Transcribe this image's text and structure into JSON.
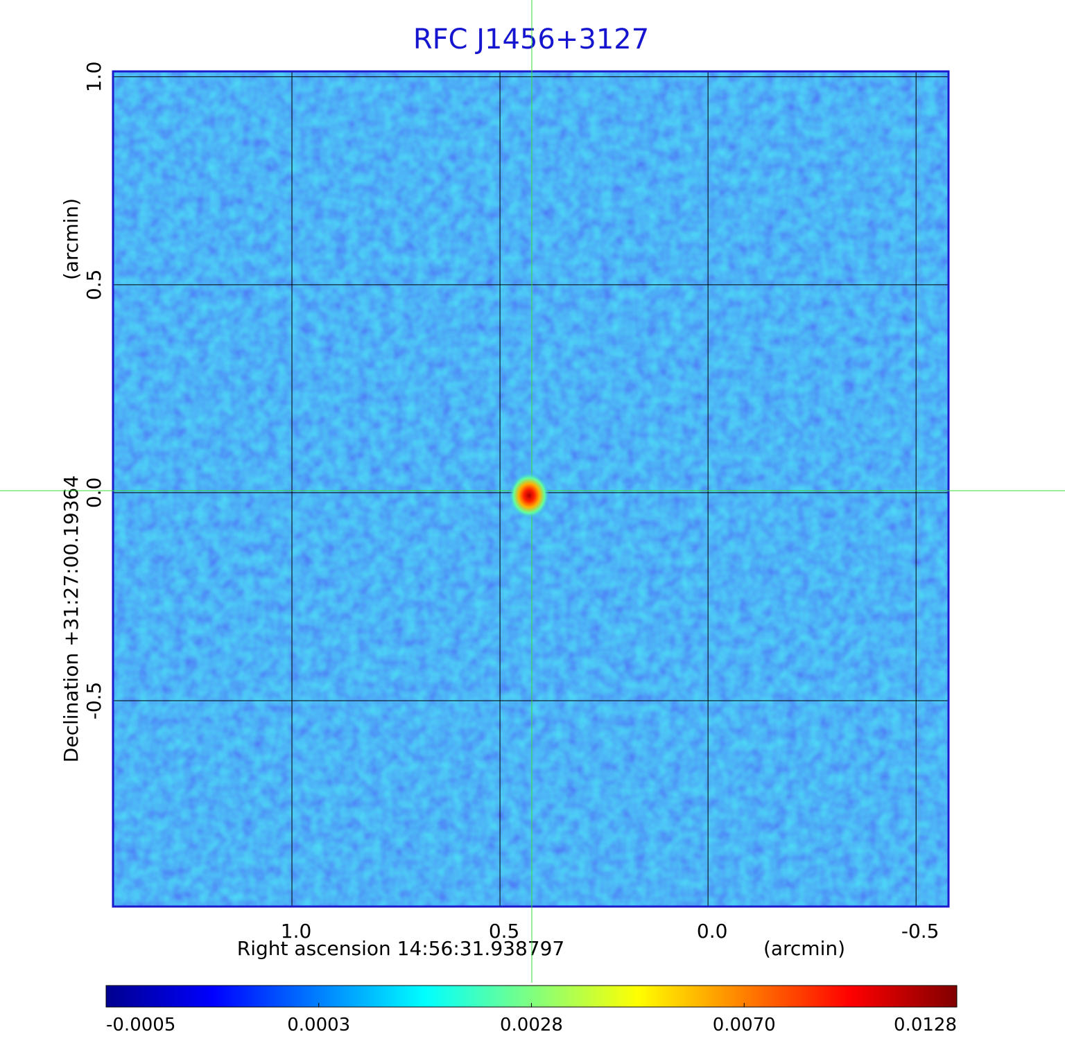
{
  "chart_data": {
    "type": "image",
    "title": "RFC J1456+3127",
    "xlabel": "Right ascension  14:56:31.938797",
    "xunit": "(arcmin)",
    "ylabel": "Declination  +31:27:00.19364",
    "yunit": "(arcmin)",
    "xlim": [
      1.43,
      -0.578
    ],
    "ylim": [
      -0.995,
      1.013
    ],
    "xticks": [
      {
        "value": 1,
        "label": "1.0"
      },
      0.5,
      {
        "value": 0,
        "label": "0.0"
      },
      -0.5
    ],
    "yticks": [
      {
        "value": 1,
        "label": "1.0"
      },
      0.5,
      {
        "value": 0,
        "label": "0.0"
      },
      -0.5
    ],
    "grid": true,
    "colormap": "jet",
    "colorbar_ticks": [
      -0.0005,
      0.0003,
      0.0028,
      {
        "value": 0.007,
        "label": "0.0070"
      },
      0.0128
    ],
    "peak": {
      "x": 0.43,
      "y": 0.0,
      "value": 0.0128
    }
  }
}
